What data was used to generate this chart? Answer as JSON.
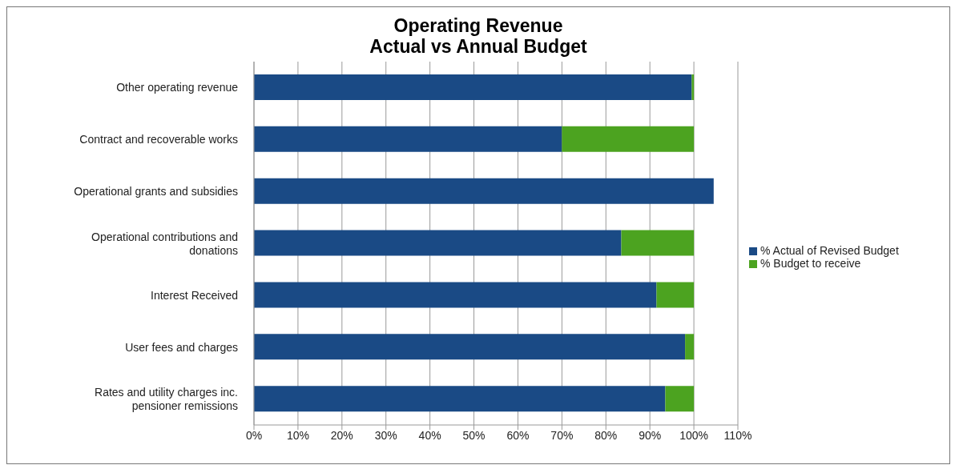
{
  "chart_data": {
    "type": "bar",
    "orientation": "horizontal",
    "stacked": true,
    "title": "Operating Revenue\nActual vs Annual Budget",
    "categories": [
      "Other operating revenue",
      "Contract and recoverable works",
      "Operational grants and subsidies",
      "Operational contributions and donations",
      "Interest Received",
      "User fees and charges",
      "Rates and utility charges inc. pensioner remissions"
    ],
    "series": [
      {
        "name": "% Actual of Revised Budget",
        "color": "#1a4a85",
        "values": [
          99.5,
          70,
          104.5,
          83.5,
          91.5,
          98,
          93.5
        ]
      },
      {
        "name": "% Budget to receive",
        "color": "#4ca320",
        "values": [
          0.5,
          30,
          0,
          16.5,
          8.5,
          2,
          6.5
        ]
      }
    ],
    "xlim": [
      0,
      110
    ],
    "xticks": [
      {
        "value": 0,
        "label": "0%"
      },
      {
        "value": 10,
        "label": "10%"
      },
      {
        "value": 20,
        "label": "20%"
      },
      {
        "value": 30,
        "label": "30%"
      },
      {
        "value": 40,
        "label": "40%"
      },
      {
        "value": 50,
        "label": "50%"
      },
      {
        "value": 60,
        "label": "60%"
      },
      {
        "value": 70,
        "label": "70%"
      },
      {
        "value": 80,
        "label": "80%"
      },
      {
        "value": 90,
        "label": "90%"
      },
      {
        "value": 100,
        "label": "100%"
      },
      {
        "value": 110,
        "label": "110%"
      }
    ],
    "grid": "x",
    "legend": "right"
  }
}
